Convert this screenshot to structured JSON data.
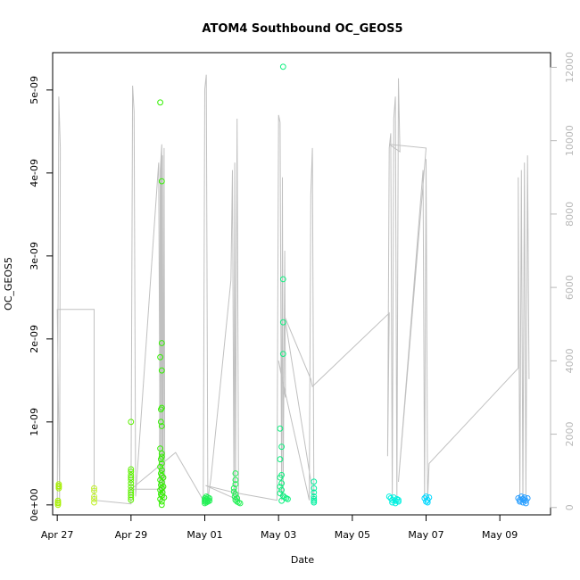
{
  "chart_data": {
    "type": "scatter",
    "title": "ATOM4 Southbound OC_GEOS5",
    "xlabel": "Date",
    "ylabel": "OC_GEOS5",
    "x_axis": {
      "range": [
        "2018-04-26T21:00",
        "2018-05-10T09:00"
      ],
      "ticks": [
        {
          "date": "2018-04-27",
          "label": "Apr 27"
        },
        {
          "date": "2018-04-29",
          "label": "Apr 29"
        },
        {
          "date": "2018-05-01",
          "label": "May 01"
        },
        {
          "date": "2018-05-03",
          "label": "May 03"
        },
        {
          "date": "2018-05-05",
          "label": "May 05"
        },
        {
          "date": "2018-05-07",
          "label": "May 07"
        },
        {
          "date": "2018-05-09",
          "label": "May 09"
        }
      ]
    },
    "y_axis_left": {
      "range": [
        -1.2e-10,
        5.45e-09
      ],
      "ticks": [
        {
          "value": 0,
          "label": "0e+00"
        },
        {
          "value": 1e-09,
          "label": "1e-09"
        },
        {
          "value": 2e-09,
          "label": "2e-09"
        },
        {
          "value": 3e-09,
          "label": "3e-09"
        },
        {
          "value": 4e-09,
          "label": "4e-09"
        },
        {
          "value": 5e-09,
          "label": "5e-09"
        }
      ]
    },
    "y_axis_right": {
      "range": [
        -200,
        12400
      ],
      "color": "#b8b8b8",
      "ticks": [
        {
          "value": 0,
          "label": "0"
        },
        {
          "value": 2000,
          "label": "2000"
        },
        {
          "value": 4000,
          "label": "4000"
        },
        {
          "value": 6000,
          "label": "6000"
        },
        {
          "value": 8000,
          "label": "8000"
        },
        {
          "value": 10000,
          "label": "10000"
        },
        {
          "value": 12000,
          "label": "12000"
        }
      ]
    },
    "grid": false,
    "legend": "none",
    "colors": {
      "altitude_line": "#c0c0c0",
      "points": [
        "#a6f000",
        "#bff02a",
        "#5cf000",
        "#33f000",
        "#22f055",
        "#10f080",
        "#00f0a0",
        "#00f0e0",
        "#00d8ff",
        "#2a9fff"
      ]
    },
    "series": [
      {
        "color": "#a6f000",
        "points": [
          [
            "2018-04-27T01:00",
            2.5e-10
          ],
          [
            "2018-04-27T01:00",
            2.2e-10
          ],
          [
            "2018-04-27T01:00",
            2e-10
          ],
          [
            "2018-04-27T01:00",
            2.3e-10
          ],
          [
            "2018-04-27T00:30",
            5e-11
          ],
          [
            "2018-04-27T00:30",
            2e-11
          ],
          [
            "2018-04-27T00:30",
            0
          ],
          [
            "2018-04-27T00:30",
            3e-11
          ]
        ]
      },
      {
        "color": "#bff02a",
        "points": [
          [
            "2018-04-28T00:00",
            2e-10
          ],
          [
            "2018-04-28T00:00",
            1.7e-10
          ],
          [
            "2018-04-28T00:00",
            1e-10
          ],
          [
            "2018-04-28T00:00",
            7e-11
          ],
          [
            "2018-04-28T00:00",
            3e-11
          ]
        ]
      },
      {
        "color": "#5cf000",
        "points": [
          [
            "2018-04-29T00:00",
            1e-09
          ],
          [
            "2018-04-29T00:00",
            4.3e-10
          ],
          [
            "2018-04-29T00:00",
            4e-10
          ],
          [
            "2018-04-29T00:00",
            3.6e-10
          ],
          [
            "2018-04-29T00:00",
            3.3e-10
          ],
          [
            "2018-04-29T00:00",
            3e-10
          ],
          [
            "2018-04-29T00:00",
            2.6e-10
          ],
          [
            "2018-04-29T00:00",
            2.2e-10
          ],
          [
            "2018-04-29T00:00",
            1.8e-10
          ],
          [
            "2018-04-29T00:00",
            1.5e-10
          ],
          [
            "2018-04-29T00:00",
            1.2e-10
          ],
          [
            "2018-04-29T00:00",
            9e-11
          ],
          [
            "2018-04-29T00:00",
            6e-11
          ]
        ]
      },
      {
        "color": "#33f000",
        "points": [
          [
            "2018-04-29T19:00",
            4.85e-09
          ],
          [
            "2018-04-29T20:00",
            3.9e-09
          ],
          [
            "2018-04-29T20:00",
            1.95e-09
          ],
          [
            "2018-04-29T19:00",
            1.78e-09
          ],
          [
            "2018-04-29T20:00",
            1.62e-09
          ],
          [
            "2018-04-29T20:00",
            1.17e-09
          ],
          [
            "2018-04-29T19:30",
            1.15e-09
          ],
          [
            "2018-04-29T19:30",
            1e-09
          ],
          [
            "2018-04-29T20:00",
            9.5e-10
          ],
          [
            "2018-04-29T19:00",
            6.8e-10
          ],
          [
            "2018-04-29T20:00",
            6.2e-10
          ],
          [
            "2018-04-29T20:00",
            5.8e-10
          ],
          [
            "2018-04-29T19:30",
            5.5e-10
          ],
          [
            "2018-04-29T20:00",
            5e-10
          ],
          [
            "2018-04-29T19:00",
            4.6e-10
          ],
          [
            "2018-04-29T20:00",
            4.2e-10
          ],
          [
            "2018-04-29T19:30",
            3.8e-10
          ],
          [
            "2018-04-29T20:00",
            3.5e-10
          ],
          [
            "2018-04-29T21:00",
            3.3e-10
          ],
          [
            "2018-04-29T19:00",
            3e-10
          ],
          [
            "2018-04-29T20:00",
            2.7e-10
          ],
          [
            "2018-04-29T19:30",
            2.4e-10
          ],
          [
            "2018-04-29T21:00",
            2.2e-10
          ],
          [
            "2018-04-29T20:00",
            2e-10
          ],
          [
            "2018-04-29T19:00",
            1.8e-10
          ],
          [
            "2018-04-29T20:30",
            1.5e-10
          ],
          [
            "2018-04-29T19:30",
            1.3e-10
          ],
          [
            "2018-04-29T20:00",
            1.1e-10
          ],
          [
            "2018-04-29T21:30",
            9e-11
          ],
          [
            "2018-04-29T19:00",
            7e-11
          ],
          [
            "2018-04-29T20:00",
            4e-11
          ],
          [
            "2018-04-29T20:00",
            0
          ]
        ]
      },
      {
        "color": "#22f055",
        "points": [
          [
            "2018-05-01T00:00",
            8e-11
          ],
          [
            "2018-05-01T00:00",
            6e-11
          ],
          [
            "2018-05-01T00:00",
            4e-11
          ],
          [
            "2018-05-01T00:00",
            2e-11
          ],
          [
            "2018-05-01T01:00",
            1e-10
          ],
          [
            "2018-05-01T01:00",
            7e-11
          ],
          [
            "2018-05-01T01:00",
            5e-11
          ],
          [
            "2018-05-01T01:00",
            3e-11
          ],
          [
            "2018-05-01T02:00",
            9e-11
          ],
          [
            "2018-05-01T02:00",
            6e-11
          ],
          [
            "2018-05-01T02:00",
            4e-11
          ],
          [
            "2018-05-01T03:00",
            8e-11
          ],
          [
            "2018-05-01T03:00",
            5e-11
          ]
        ]
      },
      {
        "color": "#22f055",
        "points": [
          [
            "2018-05-01T20:00",
            3.8e-10
          ],
          [
            "2018-05-01T20:00",
            3e-10
          ],
          [
            "2018-05-01T20:00",
            2.5e-10
          ],
          [
            "2018-05-01T19:00",
            2e-10
          ],
          [
            "2018-05-01T19:00",
            1.6e-10
          ],
          [
            "2018-05-01T20:00",
            1.3e-10
          ],
          [
            "2018-05-01T19:30",
            1e-10
          ],
          [
            "2018-05-01T21:00",
            8e-11
          ],
          [
            "2018-05-01T20:00",
            6e-11
          ],
          [
            "2018-05-01T21:00",
            4e-11
          ],
          [
            "2018-05-01T22:00",
            3e-11
          ],
          [
            "2018-05-01T23:00",
            2e-11
          ]
        ]
      },
      {
        "color": "#10f080",
        "points": [
          [
            "2018-05-03T03:00",
            5.28e-09
          ],
          [
            "2018-05-03T03:00",
            2.72e-09
          ],
          [
            "2018-05-03T03:00",
            2.2e-09
          ],
          [
            "2018-05-03T03:00",
            1.82e-09
          ],
          [
            "2018-05-03T01:00",
            9.2e-10
          ],
          [
            "2018-05-03T02:00",
            7e-10
          ],
          [
            "2018-05-03T01:00",
            5.5e-10
          ],
          [
            "2018-05-03T02:00",
            3.6e-10
          ],
          [
            "2018-05-03T01:00",
            3.3e-10
          ],
          [
            "2018-05-03T02:00",
            2.6e-10
          ],
          [
            "2018-05-03T01:00",
            2.2e-10
          ],
          [
            "2018-05-03T02:00",
            1.8e-10
          ],
          [
            "2018-05-03T01:00",
            1.4e-10
          ],
          [
            "2018-05-03T03:00",
            1.1e-10
          ],
          [
            "2018-05-03T04:00",
            9e-11
          ],
          [
            "2018-05-03T05:00",
            8e-11
          ],
          [
            "2018-05-03T06:00",
            7e-11
          ],
          [
            "2018-05-03T02:00",
            5e-11
          ]
        ]
      },
      {
        "color": "#00f0a0",
        "points": [
          [
            "2018-05-03T23:00",
            2.8e-10
          ],
          [
            "2018-05-03T23:00",
            2e-10
          ],
          [
            "2018-05-03T23:00",
            1.5e-10
          ],
          [
            "2018-05-03T23:00",
            1e-10
          ],
          [
            "2018-05-03T23:00",
            7e-11
          ],
          [
            "2018-05-03T23:00",
            5e-11
          ],
          [
            "2018-05-03T23:00",
            3e-11
          ]
        ]
      },
      {
        "color": "#00f0e0",
        "points": [
          [
            "2018-05-06T00:00",
            1e-10
          ],
          [
            "2018-05-06T01:00",
            8e-11
          ],
          [
            "2018-05-06T02:00",
            6e-11
          ],
          [
            "2018-05-06T03:00",
            9e-11
          ],
          [
            "2018-05-06T04:00",
            5e-11
          ],
          [
            "2018-05-06T05:00",
            7e-11
          ],
          [
            "2018-05-06T06:00",
            4e-11
          ],
          [
            "2018-05-06T02:00",
            3e-11
          ],
          [
            "2018-05-06T04:00",
            2e-11
          ],
          [
            "2018-05-06T06:00",
            6e-11
          ]
        ]
      },
      {
        "color": "#00d8ff",
        "points": [
          [
            "2018-05-06T23:00",
            8e-11
          ],
          [
            "2018-05-07T00:00",
            1e-10
          ],
          [
            "2018-05-07T01:00",
            6e-11
          ],
          [
            "2018-05-07T02:00",
            9e-11
          ],
          [
            "2018-05-07T00:00",
            4e-11
          ],
          [
            "2018-05-07T01:00",
            3e-11
          ]
        ]
      },
      {
        "color": "#2a9fff",
        "points": [
          [
            "2018-05-09T12:00",
            8e-11
          ],
          [
            "2018-05-09T13:00",
            6e-11
          ],
          [
            "2018-05-09T14:00",
            1e-10
          ],
          [
            "2018-05-09T15:00",
            7e-11
          ],
          [
            "2018-05-09T16:00",
            9e-11
          ],
          [
            "2018-05-09T17:00",
            5e-11
          ],
          [
            "2018-05-09T18:00",
            8e-11
          ],
          [
            "2018-05-09T13:00",
            4e-11
          ],
          [
            "2018-05-09T15:00",
            3e-11
          ],
          [
            "2018-05-09T17:00",
            2e-11
          ],
          [
            "2018-05-09T16:00",
            6e-11
          ]
        ]
      }
    ],
    "altitude_track": [
      [
        "2018-04-27T00:00",
        100
      ],
      [
        "2018-04-27T01:00",
        11200
      ],
      [
        "2018-04-27T02:00",
        9800
      ],
      [
        "2018-04-27T01:30",
        200
      ],
      [
        "2018-04-27T00:00",
        5400
      ],
      [
        "2018-04-28T00:00",
        5400
      ],
      [
        "2018-04-28T00:00",
        200
      ],
      [
        "2018-04-29T00:00",
        100
      ],
      [
        "2018-04-29T01:00",
        11500
      ],
      [
        "2018-04-29T02:00",
        10800
      ],
      [
        "2018-04-29T03:00",
        300
      ],
      [
        "2018-04-29T18:00",
        9400
      ],
      [
        "2018-04-29T19:00",
        100
      ],
      [
        "2018-04-29T19:30",
        9500
      ],
      [
        "2018-04-29T20:00",
        200
      ],
      [
        "2018-04-29T20:30",
        9600
      ],
      [
        "2018-04-29T21:00",
        300
      ],
      [
        "2018-04-29T21:30",
        9800
      ],
      [
        "2018-04-29T22:00",
        200
      ],
      [
        "2018-04-29T18:30",
        300
      ],
      [
        "2018-04-29T19:00",
        9200
      ],
      [
        "2018-04-29T20:00",
        9900
      ],
      [
        "2018-04-29T20:30",
        500
      ],
      [
        "2018-04-29T00:00",
        500
      ],
      [
        "2018-04-30T05:00",
        1500
      ],
      [
        "2018-04-30T23:00",
        200
      ],
      [
        "2018-05-01T00:00",
        11400
      ],
      [
        "2018-05-01T01:00",
        11800
      ],
      [
        "2018-05-01T02:00",
        200
      ],
      [
        "2018-05-01T04:00",
        800
      ],
      [
        "2018-05-01T17:00",
        6200
      ],
      [
        "2018-05-01T18:00",
        9200
      ],
      [
        "2018-05-01T19:00",
        200
      ],
      [
        "2018-05-01T19:30",
        9400
      ],
      [
        "2018-05-01T20:00",
        200
      ],
      [
        "2018-05-01T21:00",
        10600
      ],
      [
        "2018-05-01T22:00",
        200
      ],
      [
        "2018-05-01T00:30",
        600
      ],
      [
        "2018-05-01T20:00",
        400
      ],
      [
        "2018-05-02T23:00",
        200
      ],
      [
        "2018-05-03T00:00",
        10700
      ],
      [
        "2018-05-03T01:00",
        10500
      ],
      [
        "2018-05-03T02:00",
        200
      ],
      [
        "2018-05-03T02:30",
        9000
      ],
      [
        "2018-05-03T03:00",
        300
      ],
      [
        "2018-05-03T04:00",
        7000
      ],
      [
        "2018-05-03T04:30",
        3000
      ],
      [
        "2018-05-03T00:00",
        4000
      ],
      [
        "2018-05-03T01:00",
        3800
      ],
      [
        "2018-05-03T04:00",
        3200
      ],
      [
        "2018-05-03T20:00",
        200
      ],
      [
        "2018-05-03T21:00",
        8500
      ],
      [
        "2018-05-03T22:00",
        9800
      ],
      [
        "2018-05-03T23:00",
        200
      ],
      [
        "2018-05-03T04:00",
        5200
      ],
      [
        "2018-05-03T21:00",
        3500
      ],
      [
        "2018-05-03T22:00",
        3300
      ],
      [
        "2018-05-06T00:00",
        5300
      ],
      [
        "2018-05-05T23:00",
        1400
      ],
      [
        "2018-05-06T00:00",
        9800
      ],
      [
        "2018-05-06T01:00",
        10200
      ],
      [
        "2018-05-06T02:00",
        200
      ],
      [
        "2018-05-06T03:00",
        10600
      ],
      [
        "2018-05-06T04:00",
        11200
      ],
      [
        "2018-05-06T05:00",
        200
      ],
      [
        "2018-05-06T06:00",
        11700
      ],
      [
        "2018-05-06T07:00",
        9700
      ],
      [
        "2018-05-06T00:00",
        9900
      ],
      [
        "2018-05-07T00:00",
        9800
      ],
      [
        "2018-05-06T06:00",
        700
      ],
      [
        "2018-05-06T22:00",
        9200
      ],
      [
        "2018-05-06T23:00",
        200
      ],
      [
        "2018-05-07T00:00",
        9500
      ],
      [
        "2018-05-07T01:00",
        200
      ],
      [
        "2018-05-07T02:00",
        1200
      ],
      [
        "2018-05-09T12:00",
        3800
      ],
      [
        "2018-05-09T12:00",
        9000
      ],
      [
        "2018-05-09T13:00",
        200
      ],
      [
        "2018-05-09T14:00",
        9200
      ],
      [
        "2018-05-09T15:00",
        200
      ],
      [
        "2018-05-09T16:00",
        9400
      ],
      [
        "2018-05-09T17:00",
        300
      ],
      [
        "2018-05-09T18:00",
        9600
      ],
      [
        "2018-05-09T19:00",
        3500
      ]
    ]
  }
}
